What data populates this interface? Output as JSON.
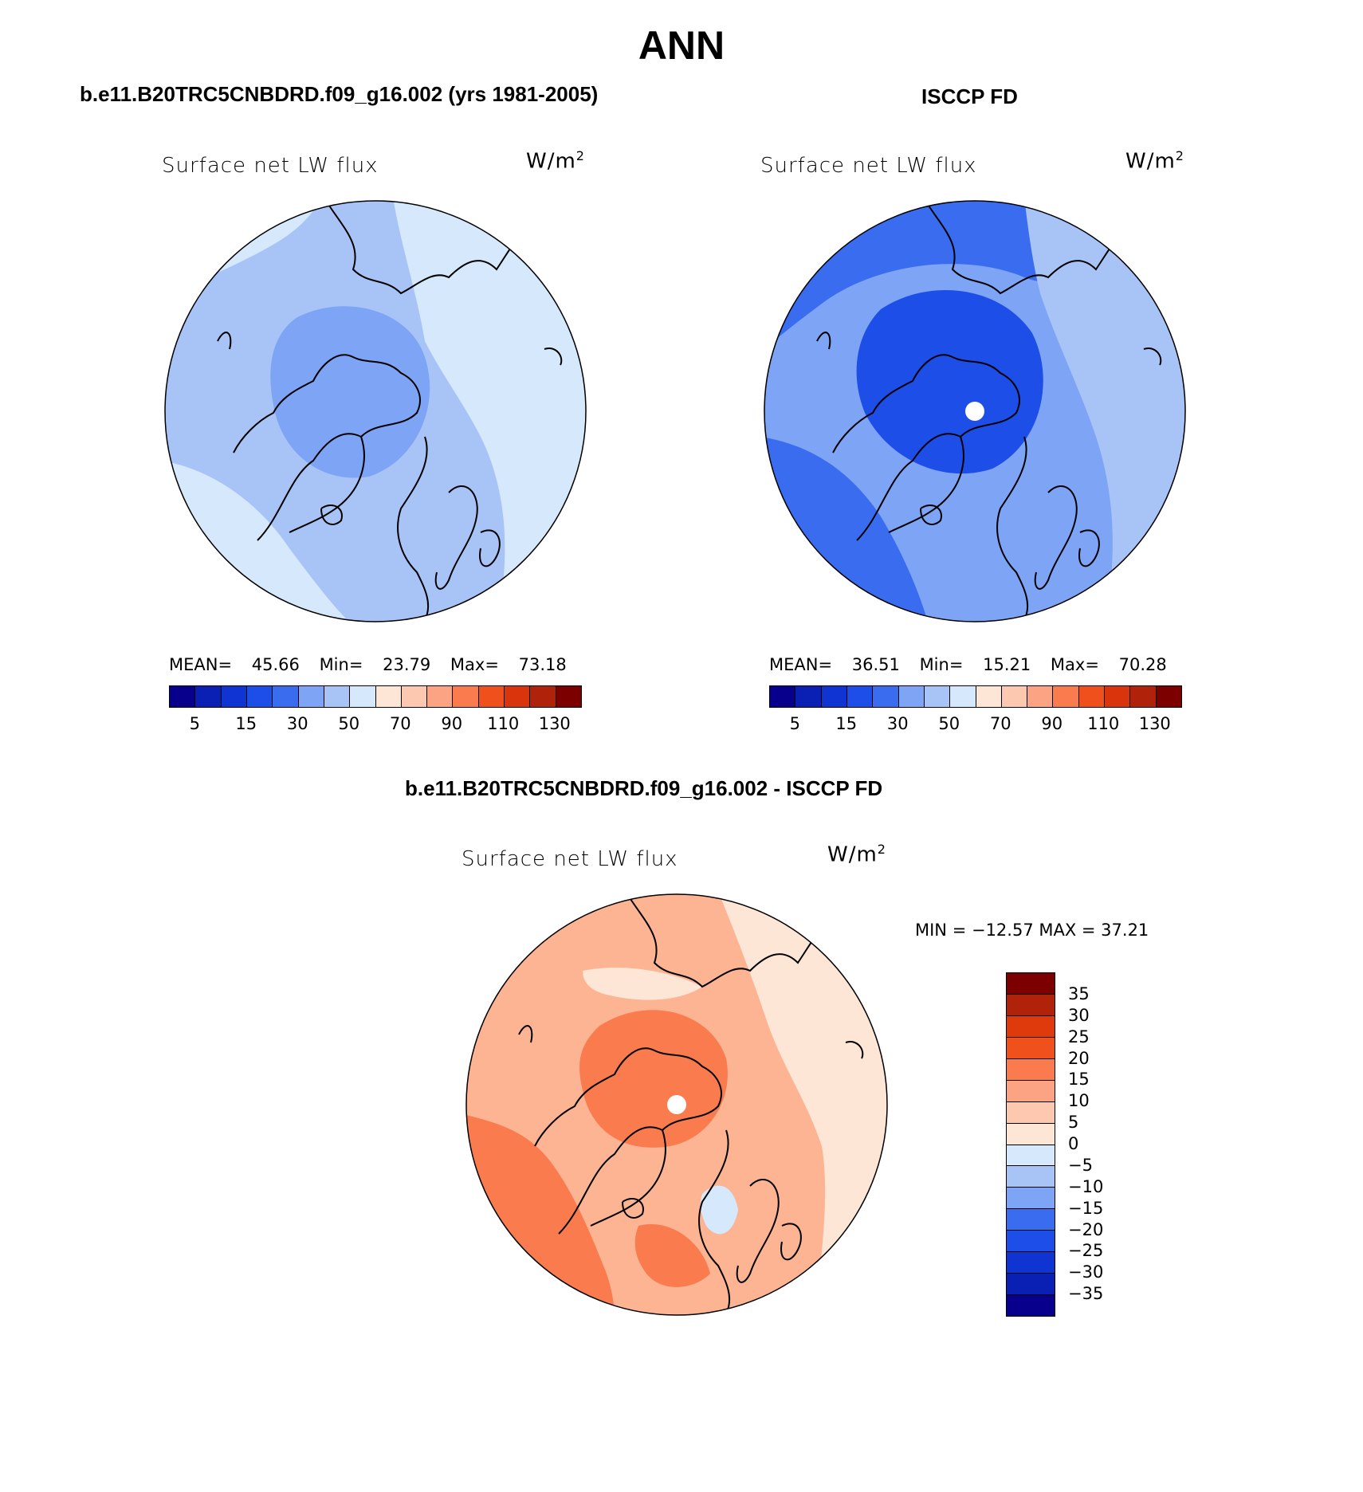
{
  "figure": {
    "title": "ANN",
    "panels": [
      {
        "id": "model",
        "header": "b.e11.B20TRC5CNBDRD.f09_g16.002 (yrs 1981-2005)",
        "variable": "Surface net LW flux",
        "units_base": "W/m",
        "units_exp": "2",
        "stats": {
          "mean_label": "MEAN=",
          "mean": "45.66",
          "min_label": "Min=",
          "min": "23.79",
          "max_label": "Max=",
          "max": "73.18"
        },
        "colorbar_labels": [
          "5",
          "15",
          "30",
          "50",
          "70",
          "90",
          "110",
          "130"
        ],
        "base_color": "#a8c4f7",
        "polar_hole": false
      },
      {
        "id": "obs",
        "header": "ISCCP FD",
        "variable": "Surface net LW flux",
        "units_base": "W/m",
        "units_exp": "2",
        "stats": {
          "mean_label": "MEAN=",
          "mean": "36.51",
          "min_label": "Min=",
          "min": "15.21",
          "max_label": "Max=",
          "max": "70.28"
        },
        "colorbar_labels": [
          "5",
          "15",
          "30",
          "50",
          "70",
          "90",
          "110",
          "130"
        ],
        "base_color": "#7ea4f5",
        "polar_hole": true
      },
      {
        "id": "diff",
        "header": "b.e11.B20TRC5CNBDRD.f09_g16.002 - ISCCP FD",
        "variable": "Surface net LW flux",
        "units_base": "W/m",
        "units_exp": "2",
        "minmax_text": "MIN = −12.57  MAX =  37.21",
        "colorbar_labels": [
          "35",
          "30",
          "25",
          "20",
          "15",
          "10",
          "5",
          "0",
          "−5",
          "−10",
          "−15",
          "−20",
          "−25",
          "−30",
          "−35"
        ],
        "base_color": "#fcb493",
        "polar_hole": true
      }
    ],
    "abs_colors": [
      "#08008c",
      "#0a1fb4",
      "#1034d2",
      "#1e4ee8",
      "#3a6cf0",
      "#7ea4f5",
      "#a8c4f7",
      "#d6e8fb",
      "#fde6d6",
      "#fcc8b0",
      "#fba383",
      "#f97b4e",
      "#f0501c",
      "#d9350c",
      "#b0230a",
      "#7d0000"
    ],
    "diff_colors": [
      "#7d0000",
      "#b0230a",
      "#de3a0c",
      "#f0501c",
      "#f97b4e",
      "#fba383",
      "#fcc8b0",
      "#fde6d6",
      "#d6e8fb",
      "#a8c4f7",
      "#7ea4f5",
      "#3a6cf0",
      "#1e4ee8",
      "#1034d2",
      "#0a1fb4",
      "#08008c"
    ]
  }
}
